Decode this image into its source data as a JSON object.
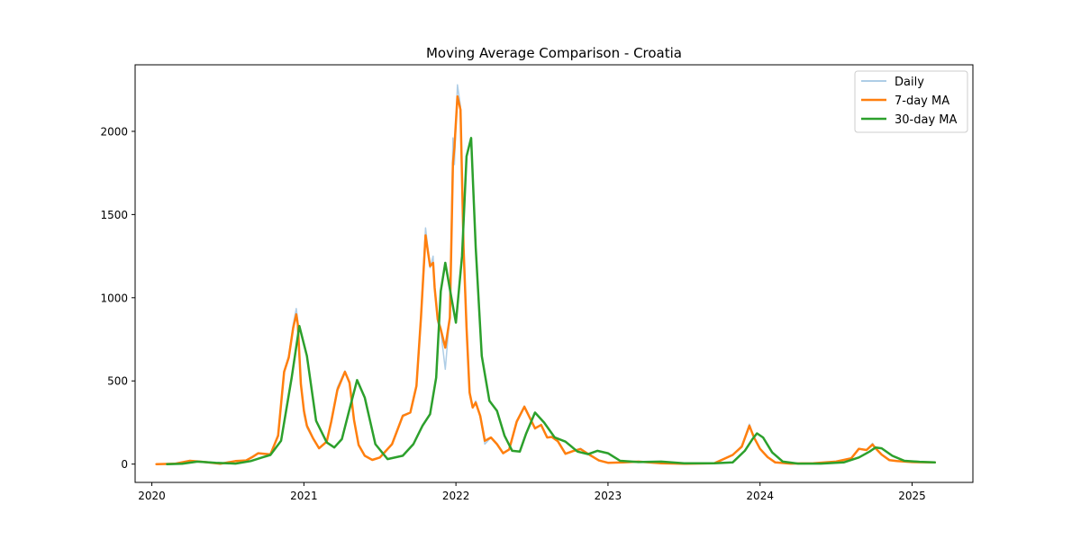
{
  "chart_data": {
    "type": "line",
    "title": "Moving Average Comparison - Croatia",
    "xlabel": "",
    "ylabel": "",
    "xlim": [
      2019.89,
      2025.4
    ],
    "ylim": [
      -110,
      2400
    ],
    "x_ticks": [
      2020,
      2021,
      2022,
      2023,
      2024,
      2025
    ],
    "x_tick_labels": [
      "2020",
      "2021",
      "2022",
      "2023",
      "2024",
      "2025"
    ],
    "y_ticks": [
      0,
      500,
      1000,
      1500,
      2000
    ],
    "y_tick_labels": [
      "0",
      "500",
      "1000",
      "1500",
      "2000"
    ],
    "grid": false,
    "legend_position": "top-right",
    "series": [
      {
        "name": "Daily",
        "color": "#aecde6",
        "x": [
          2020.03,
          2020.15,
          2020.25,
          2020.35,
          2020.45,
          2020.55,
          2020.62,
          2020.66,
          2020.7,
          2020.78,
          2020.83,
          2020.87,
          2020.9,
          2020.93,
          2020.95,
          2020.96,
          2020.98,
          2021.0,
          2021.02,
          2021.06,
          2021.1,
          2021.15,
          2021.18,
          2021.22,
          2021.27,
          2021.3,
          2021.33,
          2021.36,
          2021.4,
          2021.45,
          2021.5,
          2021.58,
          2021.65,
          2021.7,
          2021.74,
          2021.77,
          2021.8,
          2021.83,
          2021.85,
          2021.86,
          2021.88,
          2021.9,
          2021.93,
          2021.96,
          2021.98,
          2021.99,
          2022.01,
          2022.03,
          2022.05,
          2022.07,
          2022.09,
          2022.11,
          2022.13,
          2022.16,
          2022.19,
          2022.23,
          2022.27,
          2022.31,
          2022.35,
          2022.4,
          2022.45,
          2022.52,
          2022.56,
          2022.6,
          2022.63,
          2022.67,
          2022.72,
          2022.77,
          2022.82,
          2022.88,
          2022.94,
          2023.0,
          2023.1,
          2023.2,
          2023.35,
          2023.5,
          2023.7,
          2023.82,
          2023.88,
          2023.93,
          2023.96,
          2024.0,
          2024.05,
          2024.1,
          2024.2,
          2024.35,
          2024.5,
          2024.6,
          2024.65,
          2024.7,
          2024.74,
          2024.76,
          2024.8,
          2024.85,
          2024.9,
          2025.0,
          2025.15
        ],
        "values": [
          0,
          2,
          22,
          12,
          2,
          18,
          22,
          45,
          68,
          58,
          180,
          560,
          650,
          840,
          935,
          860,
          500,
          300,
          220,
          150,
          95,
          140,
          260,
          460,
          560,
          480,
          260,
          110,
          50,
          25,
          40,
          120,
          295,
          310,
          480,
          900,
          1420,
          1180,
          1250,
          1050,
          850,
          800,
          570,
          900,
          1960,
          1800,
          2280,
          2150,
          1250,
          800,
          420,
          340,
          380,
          280,
          120,
          160,
          120,
          65,
          90,
          260,
          350,
          210,
          240,
          160,
          165,
          140,
          60,
          80,
          95,
          55,
          20,
          8,
          10,
          15,
          5,
          2,
          5,
          55,
          110,
          240,
          160,
          90,
          40,
          10,
          3,
          5,
          15,
          35,
          95,
          85,
          125,
          95,
          55,
          22,
          18,
          12,
          10
        ]
      },
      {
        "name": "7-day MA",
        "color": "#ff7f0e",
        "x": [
          2020.03,
          2020.15,
          2020.25,
          2020.35,
          2020.45,
          2020.55,
          2020.62,
          2020.66,
          2020.7,
          2020.78,
          2020.83,
          2020.87,
          2020.9,
          2020.93,
          2020.95,
          2020.96,
          2020.98,
          2021.0,
          2021.02,
          2021.06,
          2021.1,
          2021.15,
          2021.18,
          2021.22,
          2021.27,
          2021.3,
          2021.33,
          2021.36,
          2021.4,
          2021.45,
          2021.5,
          2021.58,
          2021.65,
          2021.7,
          2021.74,
          2021.77,
          2021.8,
          2021.83,
          2021.85,
          2021.86,
          2021.88,
          2021.9,
          2021.93,
          2021.96,
          2021.98,
          2021.99,
          2022.01,
          2022.03,
          2022.05,
          2022.07,
          2022.09,
          2022.11,
          2022.13,
          2022.16,
          2022.19,
          2022.23,
          2022.27,
          2022.31,
          2022.35,
          2022.4,
          2022.45,
          2022.52,
          2022.56,
          2022.6,
          2022.63,
          2022.67,
          2022.72,
          2022.77,
          2022.82,
          2022.88,
          2022.94,
          2023.0,
          2023.1,
          2023.2,
          2023.35,
          2023.5,
          2023.7,
          2023.82,
          2023.88,
          2023.93,
          2023.96,
          2024.0,
          2024.05,
          2024.1,
          2024.2,
          2024.35,
          2024.5,
          2024.6,
          2024.65,
          2024.7,
          2024.74,
          2024.76,
          2024.8,
          2024.85,
          2024.9,
          2025.0,
          2025.15
        ],
        "values": [
          0,
          2,
          20,
          12,
          2,
          18,
          22,
          42,
          65,
          58,
          170,
          555,
          640,
          820,
          900,
          840,
          480,
          320,
          230,
          155,
          95,
          135,
          255,
          445,
          555,
          490,
          265,
          115,
          50,
          25,
          40,
          120,
          290,
          310,
          470,
          880,
          1375,
          1190,
          1210,
          1060,
          870,
          810,
          700,
          880,
          1810,
          1900,
          2210,
          2130,
          1300,
          820,
          430,
          340,
          370,
          290,
          140,
          160,
          120,
          65,
          88,
          255,
          345,
          215,
          235,
          160,
          163,
          138,
          62,
          78,
          90,
          55,
          22,
          8,
          10,
          15,
          5,
          2,
          5,
          55,
          105,
          230,
          160,
          92,
          42,
          10,
          3,
          5,
          15,
          35,
          92,
          85,
          118,
          95,
          57,
          24,
          18,
          12,
          10
        ]
      },
      {
        "name": "30-day MA",
        "color": "#2ca02c",
        "x": [
          2020.1,
          2020.2,
          2020.3,
          2020.42,
          2020.55,
          2020.65,
          2020.72,
          2020.78,
          2020.85,
          2020.92,
          2020.97,
          2021.02,
          2021.08,
          2021.15,
          2021.2,
          2021.25,
          2021.3,
          2021.35,
          2021.4,
          2021.47,
          2021.55,
          2021.65,
          2021.72,
          2021.78,
          2021.83,
          2021.87,
          2021.9,
          2021.93,
          2021.97,
          2022.0,
          2022.04,
          2022.07,
          2022.1,
          2022.13,
          2022.17,
          2022.22,
          2022.27,
          2022.32,
          2022.37,
          2022.42,
          2022.46,
          2022.52,
          2022.58,
          2022.65,
          2022.72,
          2022.8,
          2022.87,
          2022.93,
          2023.0,
          2023.08,
          2023.2,
          2023.35,
          2023.5,
          2023.7,
          2023.82,
          2023.9,
          2023.95,
          2023.98,
          2024.02,
          2024.08,
          2024.15,
          2024.25,
          2024.4,
          2024.55,
          2024.65,
          2024.72,
          2024.76,
          2024.8,
          2024.87,
          2024.95,
          2025.05,
          2025.15
        ],
        "values": [
          0,
          2,
          15,
          8,
          3,
          18,
          38,
          55,
          140,
          520,
          830,
          650,
          260,
          130,
          100,
          150,
          330,
          505,
          400,
          120,
          30,
          50,
          120,
          230,
          300,
          520,
          1040,
          1210,
          1000,
          850,
          1250,
          1850,
          1960,
          1300,
          650,
          380,
          320,
          170,
          80,
          75,
          180,
          310,
          250,
          160,
          135,
          75,
          60,
          80,
          65,
          20,
          12,
          15,
          5,
          5,
          10,
          80,
          150,
          185,
          160,
          70,
          15,
          3,
          3,
          10,
          40,
          75,
          100,
          95,
          50,
          20,
          14,
          10
        ]
      }
    ]
  }
}
